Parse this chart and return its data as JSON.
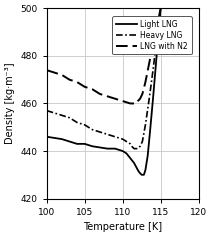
{
  "xlabel": "Temperature [K]",
  "ylabel": "Density [kg·m⁻³]",
  "xlim": [
    100,
    120
  ],
  "ylim": [
    420,
    500
  ],
  "xticks": [
    100,
    105,
    110,
    115,
    120
  ],
  "yticks": [
    420,
    440,
    460,
    480,
    500
  ],
  "legend": [
    {
      "label": "Light LNG"
    },
    {
      "label": "Heavy LNG"
    },
    {
      "label": "LNG with N2"
    }
  ],
  "light_lng_x": [
    100,
    101,
    102,
    103,
    104,
    105,
    106,
    107,
    108,
    109,
    110,
    110.5,
    111,
    111.5,
    112,
    112.2,
    112.5,
    112.8,
    113.0,
    113.3,
    113.6,
    114.0,
    114.5,
    115.0
  ],
  "light_lng_y": [
    446,
    445.5,
    445,
    444,
    443,
    443,
    442,
    441.5,
    441,
    441,
    440,
    439,
    437,
    435,
    432,
    431,
    430,
    430,
    432,
    438,
    448,
    462,
    481,
    500
  ],
  "heavy_lng_x": [
    100,
    101,
    102,
    103,
    104,
    105,
    106,
    107,
    108,
    109,
    110,
    110.5,
    111,
    111.2,
    111.5,
    111.8,
    112.0,
    112.3,
    112.6,
    113.0,
    113.5,
    114.0,
    114.5,
    115.0
  ],
  "heavy_lng_y": [
    457,
    456,
    455,
    454,
    452,
    451,
    449,
    448,
    447,
    446,
    445,
    444,
    443,
    442,
    441,
    441,
    441,
    442,
    444,
    451,
    462,
    474,
    487,
    500
  ],
  "n2_lng_x": [
    100,
    101,
    102,
    103,
    104,
    105,
    106,
    107,
    108,
    109,
    110,
    110.5,
    111,
    111.2,
    111.5,
    111.8,
    112.0,
    112.3,
    112.6,
    113.0,
    113.5,
    114.0,
    114.5,
    115.0
  ],
  "n2_lng_y": [
    474,
    473,
    472,
    470,
    469,
    467,
    466,
    464,
    463,
    462,
    461,
    460.5,
    460,
    460,
    460,
    460,
    461,
    462,
    464,
    469,
    477,
    485,
    492,
    500
  ],
  "color": "#000000",
  "bg_color": "#ffffff",
  "grid_color": "#c8c8c8"
}
